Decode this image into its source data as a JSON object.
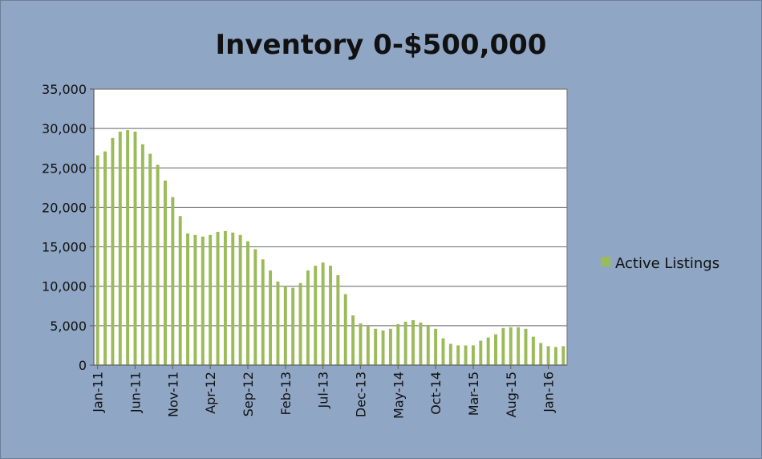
{
  "chart_data": {
    "type": "bar",
    "title": "Inventory 0-$500,000",
    "xlabel": "",
    "ylabel": "",
    "ylim": [
      0,
      35000
    ],
    "y_ticks": [
      "35,000",
      "30,000",
      "25,000",
      "20,000",
      "15,000",
      "10,000",
      "5,000",
      "0"
    ],
    "y_tick_values": [
      35000,
      30000,
      25000,
      20000,
      15000,
      10000,
      5000,
      0
    ],
    "x_tick_labels": [
      "Jan-11",
      "Jun-11",
      "Nov-11",
      "Apr-12",
      "Sep-12",
      "Feb-13",
      "Jul-13",
      "Dec-13",
      "May-14",
      "Oct-14",
      "Mar-15",
      "Aug-15",
      "Jan-16"
    ],
    "grid": true,
    "legend_position": "right",
    "colors": {
      "bar": "#9bbb59",
      "plot_bg": "#ffffff",
      "chart_bg": "#8fa6c4",
      "grid": "#808080"
    },
    "categories": [
      "Jan-11",
      "Feb-11",
      "Mar-11",
      "Apr-11",
      "May-11",
      "Jun-11",
      "Jul-11",
      "Aug-11",
      "Sep-11",
      "Oct-11",
      "Nov-11",
      "Dec-11",
      "Jan-12",
      "Feb-12",
      "Mar-12",
      "Apr-12",
      "May-12",
      "Jun-12",
      "Jul-12",
      "Aug-12",
      "Sep-12",
      "Oct-12",
      "Nov-12",
      "Dec-12",
      "Jan-13",
      "Feb-13",
      "Mar-13",
      "Apr-13",
      "May-13",
      "Jun-13",
      "Jul-13",
      "Aug-13",
      "Sep-13",
      "Oct-13",
      "Nov-13",
      "Dec-13",
      "Jan-14",
      "Feb-14",
      "Mar-14",
      "Apr-14",
      "May-14",
      "Jun-14",
      "Jul-14",
      "Aug-14",
      "Sep-14",
      "Oct-14",
      "Nov-14",
      "Dec-14",
      "Jan-15",
      "Feb-15",
      "Mar-15",
      "Apr-15",
      "May-15",
      "Jun-15",
      "Jul-15",
      "Aug-15",
      "Sep-15",
      "Oct-15",
      "Nov-15",
      "Dec-15",
      "Jan-16",
      "Feb-16",
      "Mar-16"
    ],
    "series": [
      {
        "name": "Active Listings",
        "values": [
          26600,
          27100,
          28800,
          29600,
          29800,
          29600,
          28000,
          26800,
          25400,
          23400,
          21300,
          18900,
          16700,
          16500,
          16300,
          16500,
          16900,
          17000,
          16800,
          16500,
          15700,
          14700,
          13400,
          12000,
          10600,
          10000,
          9800,
          10400,
          12000,
          12600,
          13000,
          12600,
          11400,
          9000,
          6300,
          5300,
          4900,
          4600,
          4400,
          4600,
          5200,
          5500,
          5700,
          5400,
          5100,
          4600,
          3400,
          2700,
          2500,
          2500,
          2500,
          3100,
          3500,
          3900,
          4700,
          4800,
          4800,
          4600,
          3600,
          2800,
          2400,
          2300,
          2400
        ]
      }
    ]
  }
}
